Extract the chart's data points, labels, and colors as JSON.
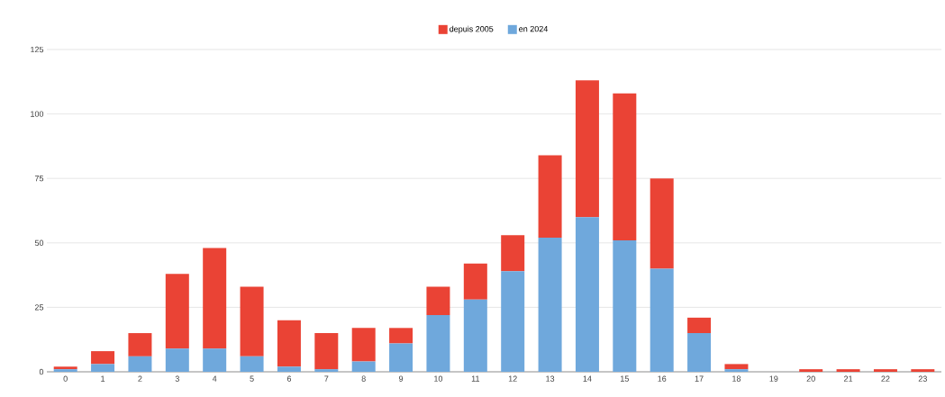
{
  "chart_data": {
    "type": "bar",
    "stacked": true,
    "categories": [
      "0",
      "1",
      "2",
      "3",
      "4",
      "5",
      "6",
      "7",
      "8",
      "9",
      "10",
      "11",
      "12",
      "13",
      "14",
      "15",
      "16",
      "17",
      "18",
      "19",
      "20",
      "21",
      "22",
      "23"
    ],
    "series": [
      {
        "name": "en 2024",
        "color": "#6fa8dc",
        "values": [
          1,
          3,
          6,
          9,
          9,
          6,
          2,
          1,
          4,
          11,
          22,
          28,
          39,
          52,
          60,
          51,
          40,
          15,
          1,
          0,
          0,
          0,
          0,
          0
        ]
      },
      {
        "name": "depuis 2005",
        "color": "#ea4335",
        "values": [
          1,
          5,
          9,
          29,
          39,
          27,
          18,
          14,
          13,
          6,
          11,
          14,
          14,
          32,
          53,
          57,
          35,
          6,
          2,
          0,
          1,
          1,
          1,
          1
        ]
      }
    ],
    "ylim": [
      0,
      125
    ],
    "yticks": [
      0,
      25,
      50,
      75,
      100,
      125
    ],
    "grid": "y",
    "legend": "top"
  }
}
